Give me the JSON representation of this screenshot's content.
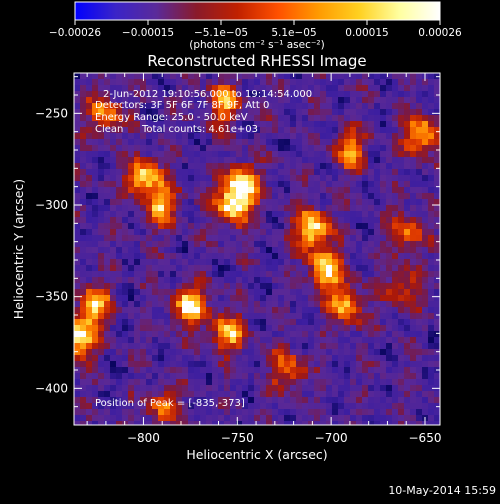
{
  "chart_data": {
    "type": "heatmap",
    "title": "Reconstructed RHESSI Image",
    "xlabel": "Heliocentric X (arcsec)",
    "ylabel": "Heliocentric Y (arcsec)",
    "xlim": [
      -837,
      -642
    ],
    "ylim": [
      -420,
      -228
    ],
    "x_ticks": [
      -800,
      -750,
      -700,
      -650
    ],
    "y_ticks": [
      -250,
      -300,
      -350,
      -400
    ],
    "x_tick_labels": [
      "−800",
      "−750",
      "−700",
      "−650"
    ],
    "y_tick_labels": [
      "−250",
      "−300",
      "−350",
      "−400"
    ],
    "colorbar": {
      "range": [
        -0.00026,
        0.00026
      ],
      "tick_labels": [
        "−0.00026",
        "−0.00015",
        "−5.1e−05",
        "5.1e−05",
        "0.00015",
        "0.00026"
      ],
      "unit_label": "(photons cm⁻² s⁻¹ asec⁻²)",
      "colors": [
        "#0000ff",
        "#3a24c8",
        "#5a2a9a",
        "#8a1a2a",
        "#c02000",
        "#ff5000",
        "#ff9a00",
        "#ffd020",
        "#ffffa0",
        "#ffffff"
      ]
    },
    "annotations": {
      "time_range": "2-Jun-2012 19:10:56.000 to 19:14:54.000",
      "detectors": "Detectors: 3F 5F 6F 7F 8F 9F, Att 0",
      "energy": "Energy Range: 25.0 - 50.0 keV",
      "clean_label": "Clean",
      "counts": "Total counts: 4.61e+03",
      "peak": "Position of Peak = [-835,-373]"
    },
    "peak_position": [
      -835,
      -373
    ],
    "hotspots": [
      {
        "x": -752,
        "y": -300,
        "v": 0.95
      },
      {
        "x": -747,
        "y": -288,
        "v": 0.8
      },
      {
        "x": -710,
        "y": -313,
        "v": 0.98
      },
      {
        "x": -703,
        "y": -335,
        "v": 0.9
      },
      {
        "x": -692,
        "y": -355,
        "v": 0.75
      },
      {
        "x": -800,
        "y": -285,
        "v": 0.85
      },
      {
        "x": -790,
        "y": -300,
        "v": 0.7
      },
      {
        "x": -775,
        "y": -355,
        "v": 0.9
      },
      {
        "x": -755,
        "y": -370,
        "v": 0.75
      },
      {
        "x": -835,
        "y": -373,
        "v": 1.0
      },
      {
        "x": -826,
        "y": -355,
        "v": 0.75
      },
      {
        "x": -820,
        "y": -250,
        "v": 0.65
      },
      {
        "x": -757,
        "y": -245,
        "v": 0.7
      },
      {
        "x": -690,
        "y": -270,
        "v": 0.65
      },
      {
        "x": -652,
        "y": -262,
        "v": 0.8
      },
      {
        "x": -660,
        "y": -315,
        "v": 0.6
      },
      {
        "x": -662,
        "y": -345,
        "v": 0.55
      },
      {
        "x": -723,
        "y": -390,
        "v": 0.6
      },
      {
        "x": -790,
        "y": -410,
        "v": 0.55
      }
    ]
  },
  "footer": {
    "date_stamp": "10-May-2014 15:59"
  },
  "colors": {
    "background": "#000000",
    "text": "#ffffff"
  }
}
